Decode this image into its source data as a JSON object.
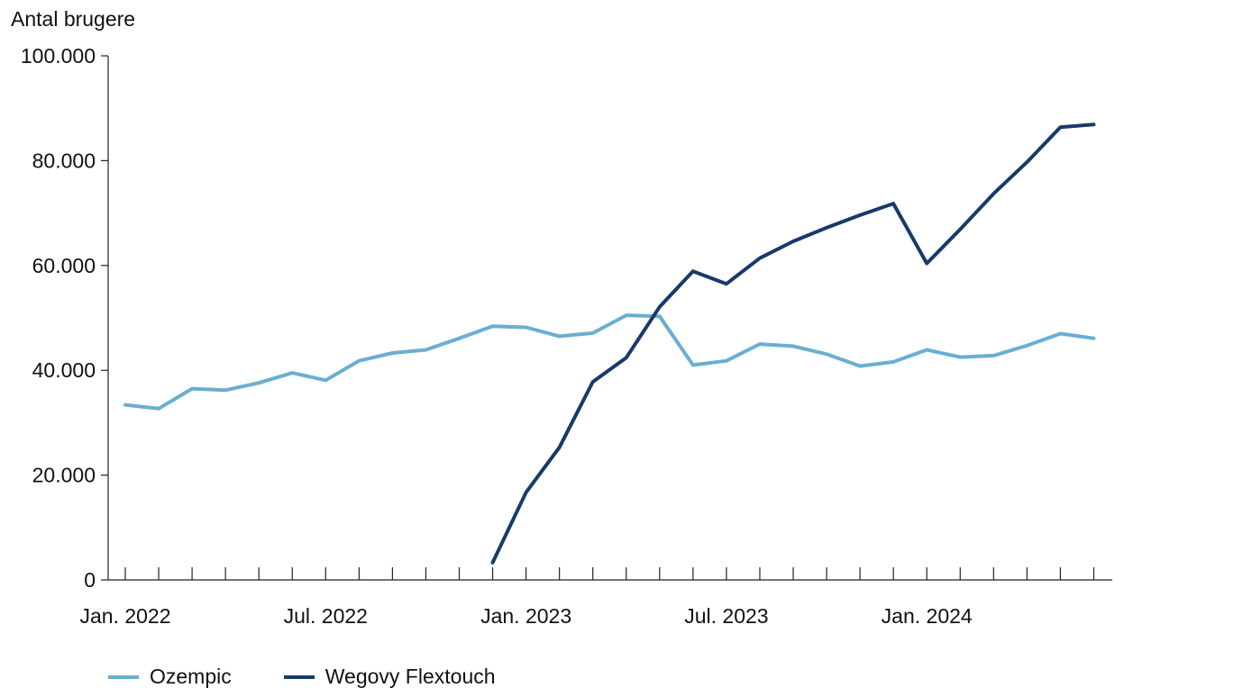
{
  "chart_data": {
    "type": "line",
    "ylabel": "Antal brugere",
    "ylim": [
      0,
      100000
    ],
    "yticks": [
      {
        "value": 0,
        "label": "0"
      },
      {
        "value": 20000,
        "label": "20.000"
      },
      {
        "value": 40000,
        "label": "40.000"
      },
      {
        "value": 60000,
        "label": "60.000"
      },
      {
        "value": 80000,
        "label": "80.000"
      },
      {
        "value": 100000,
        "label": "100.000"
      }
    ],
    "x": [
      "2022-01",
      "2022-02",
      "2022-03",
      "2022-04",
      "2022-05",
      "2022-06",
      "2022-07",
      "2022-08",
      "2022-09",
      "2022-10",
      "2022-11",
      "2022-12",
      "2023-01",
      "2023-02",
      "2023-03",
      "2023-04",
      "2023-05",
      "2023-06",
      "2023-07",
      "2023-08",
      "2023-09",
      "2023-10",
      "2023-11",
      "2023-12",
      "2024-01",
      "2024-02",
      "2024-03",
      "2024-04",
      "2024-05",
      "2024-06"
    ],
    "xtick_labels": [
      {
        "x": "2022-01",
        "label": "Jan. 2022"
      },
      {
        "x": "2022-07",
        "label": "Jul. 2022"
      },
      {
        "x": "2023-01",
        "label": "Jan. 2023"
      },
      {
        "x": "2023-07",
        "label": "Jul. 2023"
      },
      {
        "x": "2024-01",
        "label": "Jan. 2024"
      }
    ],
    "series": [
      {
        "name": "Ozempic",
        "color": "#6aaed0",
        "values": [
          33400,
          32700,
          36500,
          36200,
          37600,
          39500,
          38100,
          41800,
          43300,
          43900,
          46100,
          48400,
          48200,
          46500,
          47100,
          50500,
          50300,
          41000,
          41800,
          45000,
          44600,
          43100,
          40800,
          41600,
          43900,
          42500,
          42800,
          44700,
          47000,
          46100
        ]
      },
      {
        "name": "Wegovy Flextouch",
        "color": "#173a6b",
        "values": [
          null,
          null,
          null,
          null,
          null,
          null,
          null,
          null,
          null,
          null,
          null,
          3300,
          16700,
          25300,
          37800,
          42400,
          52100,
          58900,
          56500,
          61400,
          64600,
          67200,
          69600,
          71800,
          60400,
          66900,
          73700,
          79700,
          86400,
          86900
        ]
      }
    ],
    "grid": false,
    "legend": "bottom-left"
  }
}
